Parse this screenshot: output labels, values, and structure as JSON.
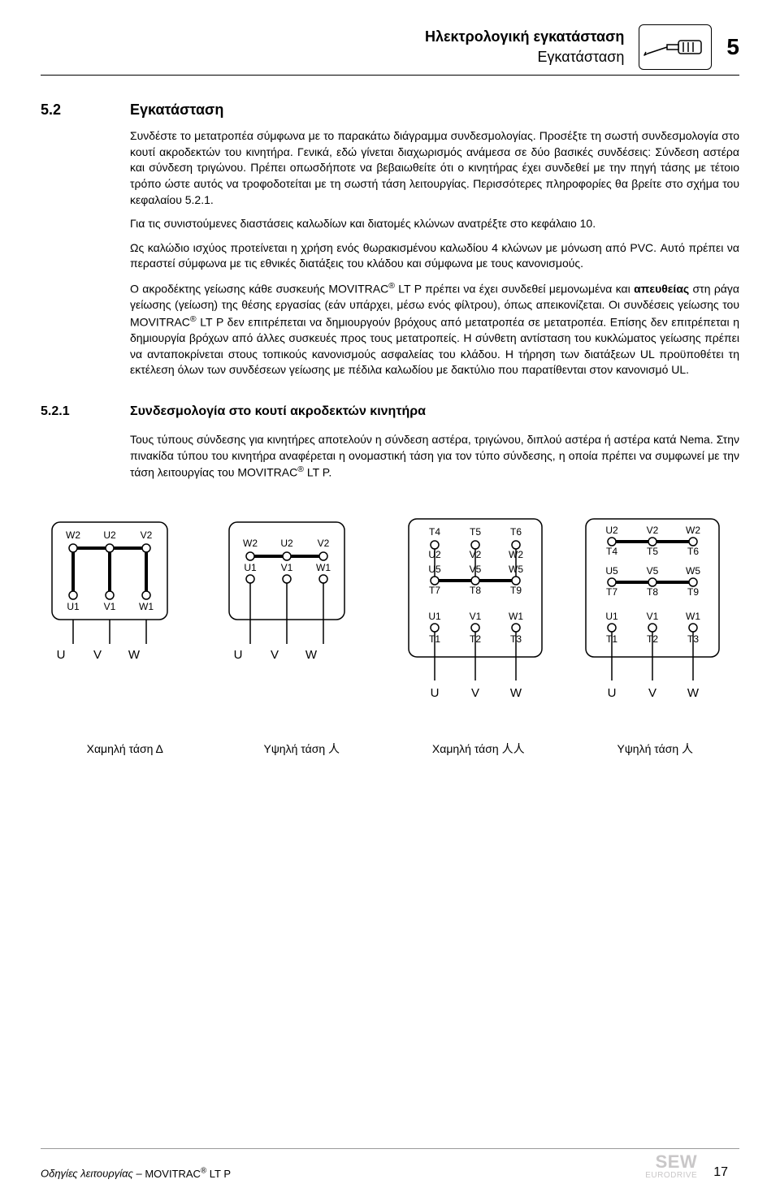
{
  "header": {
    "title_bold": "Ηλεκτρολογική εγκατάσταση",
    "title_sub": "Εγκατάσταση",
    "chapter": "5"
  },
  "section": {
    "num": "5.2",
    "title": "Εγκατάσταση",
    "paragraphs": [
      "Συνδέστε το μετατροπέα σύμφωνα με το παρακάτω διάγραμμα συνδεσμολογίας. Προσέξτε τη σωστή συνδεσμολογία στο κουτί ακροδεκτών του κινητήρα. Γενικά, εδώ γίνεται διαχωρισμός ανάμεσα σε δύο βασικές συνδέσεις: Σύνδεση αστέρα και σύνδεση τριγώνου. Πρέπει οπωσδήποτε να βεβαιωθείτε ότι ο κινητήρας έχει συνδεθεί με την πηγή τάσης με τέτοιο τρόπο ώστε αυτός να τροφοδοτείται με τη σωστή τάση λειτουργίας. Περισσότερες πληροφορίες θα βρείτε στο σχήμα του κεφαλαίου 5.2.1.",
      "Για τις συνιστούμενες διαστάσεις καλωδίων και διατομές κλώνων ανατρέξτε στο κεφάλαιο 10.",
      "Ως καλώδιο ισχύος προτείνεται η χρήση ενός θωρακισμένου καλωδίου 4 κλώνων με μόνωση από PVC. Αυτό πρέπει να περαστεί σύμφωνα με τις εθνικές διατάξεις του κλάδου και σύμφωνα με τους κανονισμούς.",
      "Ο ακροδέκτης γείωσης κάθε συσκευής MOVITRAC® LT P πρέπει να έχει συνδεθεί μεμονωμένα και απευθείας στη ράγα γείωσης (γείωση) της θέσης εργασίας (εάν υπάρχει, μέσω ενός φίλτρου), όπως απεικονίζεται. Οι συνδέσεις γείωσης του MOVITRAC® LT P δεν επιτρέπεται να δημιουργούν βρόχους από μετατροπέα σε μετατροπέα. Επίσης δεν επιτρέπεται η δημιουργία βρόχων από άλλες συσκευές προς τους μετατροπείς. Η σύνθετη αντίσταση του κυκλώματος γείωσης πρέπει να ανταποκρίνεται στους τοπικούς κανονισμούς ασφαλείας του κλάδου. Η τήρηση των διατάξεων UL προϋποθέτει τη εκτέλεση όλων των συνδέσεων γείωσης με πέδιλα καλωδίου με δακτύλιο που παρατίθενται στον κανονισμό UL."
    ]
  },
  "subsection": {
    "num": "5.2.1",
    "title": "Συνδεσμολογία στο κουτί ακροδεκτών κινητήρα",
    "intro": "Τους τύπους σύνδεσης για κινητήρες αποτελούν η σύνδεση αστέρα, τριγώνου, διπλού αστέρα ή αστέρα κατά Nema. Στην πινακίδα τύπου του κινητήρα αναφέρεται η ονομαστική τάση για τον τύπο σύνδεσης, η οποία πρέπει να συμφωνεί με την τάση λειτουργίας του MOVITRAC® LT P."
  },
  "diagrams": {
    "box_border_color": "#000000",
    "box_stroke_width": 1.5,
    "box_radius": 10,
    "terminal_font_size": 12,
    "captions": [
      "Χαμηλή τάση Δ",
      "Υψηλή τάση 人",
      "Χαμηλή τάση 人人",
      "Υψηλή τάση 人"
    ],
    "outputs": [
      "U",
      "V",
      "W"
    ],
    "d1": {
      "top_row": [
        "W2",
        "U2",
        "V2"
      ],
      "bottom_row": [
        "U1",
        "V1",
        "W1"
      ],
      "top_bar": true,
      "bottom_bar": false,
      "verticals": true
    },
    "d2": {
      "top_row": [
        "W2",
        "U2",
        "V2"
      ],
      "bottom_row": [
        "U1",
        "V1",
        "W1"
      ],
      "top_bar": true,
      "bottom_bar": false,
      "verticals": false
    },
    "d3": {
      "rows": [
        {
          "main": [
            "T4",
            "T5",
            "T6"
          ],
          "alt": [
            "U2",
            "V2",
            "W2"
          ],
          "bar": false
        },
        {
          "main": [
            "U5",
            "V5",
            "W5"
          ],
          "alt": [
            "T7",
            "T8",
            "T9"
          ],
          "bar": true
        },
        {
          "main": [
            "U1",
            "V1",
            "W1"
          ],
          "alt": [
            "T1",
            "T2",
            "T3"
          ],
          "bar": false
        }
      ]
    },
    "d4": {
      "rows": [
        {
          "main": [
            "U2",
            "V2",
            "W2"
          ],
          "alt": [
            "T4",
            "T5",
            "T6"
          ],
          "bar": true
        },
        {
          "main": [
            "U5",
            "V5",
            "W5"
          ],
          "alt": [
            "T7",
            "T8",
            "T9"
          ],
          "bar": true
        },
        {
          "main": [
            "U1",
            "V1",
            "W1"
          ],
          "alt": [
            "T1",
            "T2",
            "T3"
          ],
          "bar": false
        }
      ]
    }
  },
  "footer": {
    "left_prefix": "Οδηγίες λειτουργίας – ",
    "left_product": "MOVITRAC® LT P",
    "page": "17",
    "logo_main": "SEW",
    "logo_sub": "EURODRIVE"
  }
}
